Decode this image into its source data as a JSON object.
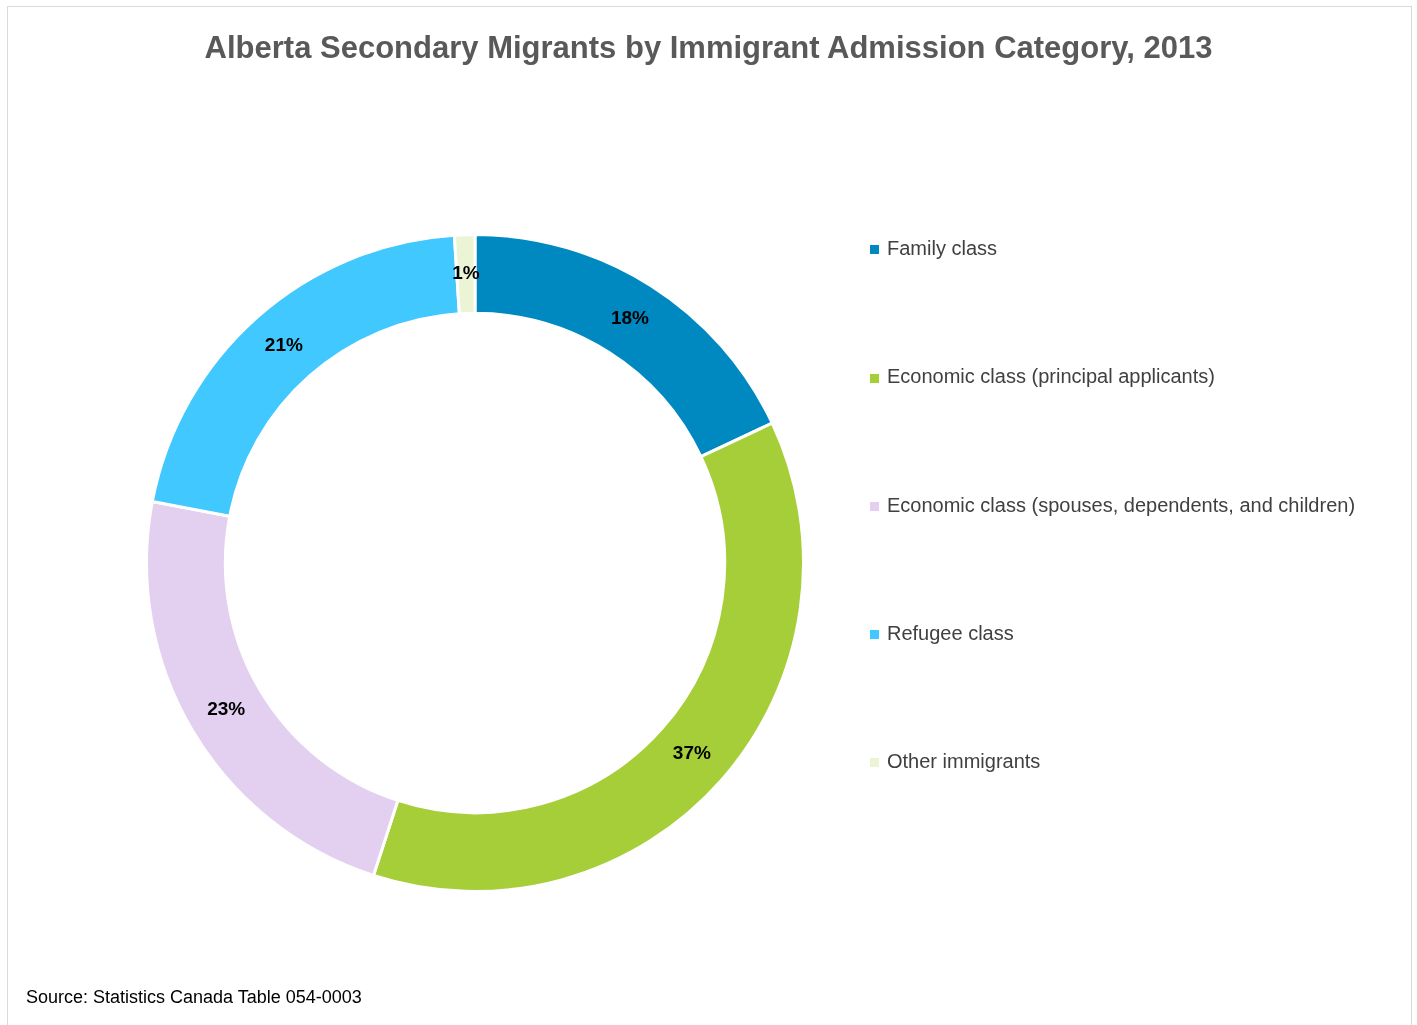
{
  "chart_data": {
    "type": "donut",
    "title": "Alberta Secondary Migrants by Immigrant Admission Category, 2013",
    "categories": [
      "Family class",
      "Economic class (principal applicants)",
      "Economic class (spouses, dependents, and children)",
      "Refugee class",
      "Other immigrants"
    ],
    "values": [
      18,
      37,
      23,
      21,
      1
    ],
    "colors": [
      "#0089c1",
      "#a6ce39",
      "#e3d0f0",
      "#40c8ff",
      "#ebf5d5"
    ],
    "value_labels": [
      "18%",
      "37%",
      "23%",
      "21%",
      "1%"
    ],
    "legend": "right",
    "annotations": [
      "Source: Statistics Canada Table 054-0003"
    ]
  }
}
